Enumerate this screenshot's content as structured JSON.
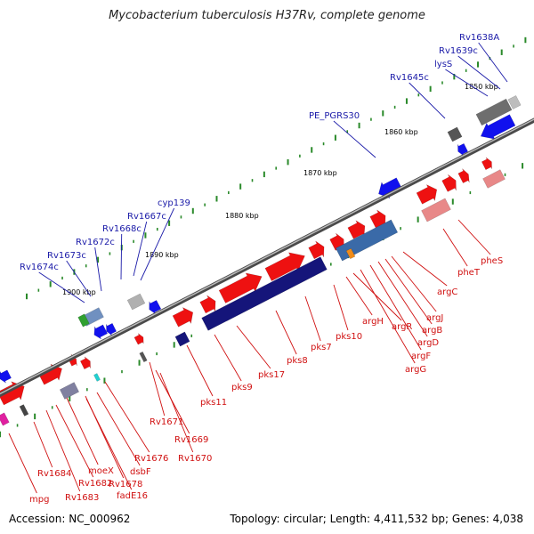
{
  "title": "Mycobacterium tuberculosis H37Rv, complete genome",
  "accession": "Accession: NC_000962",
  "topology": "Topology: circular; Length: 4,411,532 bp; Genes: 4,038",
  "colors": {
    "top_labels": "#1a1aa8",
    "bottom_labels": "#d01010",
    "forward_genes": "#ee1111",
    "reverse_genes": "#1111ee",
    "backbone": "#808080",
    "ticks": "#2a8a2a"
  },
  "kbp_ticks": [
    "1850 kbp",
    "1860 kbp",
    "1870 kbp",
    "1880 kbp",
    "1890 kbp",
    "1900 kbp"
  ],
  "gene_labels_top": [
    "Rv1638A",
    "Rv1639c",
    "lysS",
    "Rv1645c",
    "PE_PGRS30",
    "cyp139",
    "Rv1667c",
    "Rv1668c",
    "Rv1672c",
    "Rv1673c",
    "Rv1674c"
  ],
  "gene_labels_bottom": [
    "pheS",
    "pheT",
    "argC",
    "argJ",
    "argB",
    "argD",
    "argF",
    "argG",
    "argR",
    "argH",
    "pks10",
    "pks7",
    "pks8",
    "pks17",
    "pks9",
    "pks11",
    "Rv1671",
    "Rv1669",
    "Rv1670",
    "Rv1676",
    "Rv1678",
    "dsbF",
    "fadE16",
    "moeX",
    "Rv1682",
    "Rv1683",
    "Rv1684",
    "mpg"
  ]
}
